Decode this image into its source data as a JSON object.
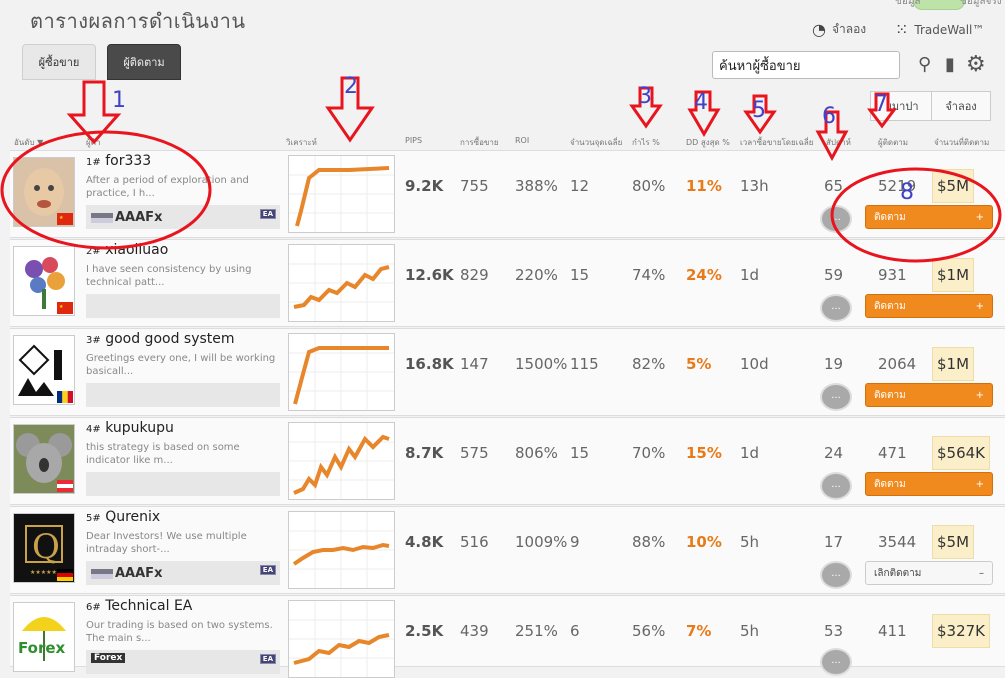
{
  "page_title": "ตารางผลการดำเนินงาน",
  "top": {
    "toggle_left": "ข้อมูล",
    "toggle_right": "ข้อมูลจริง",
    "simulate_label": "จำลอง",
    "tradewall_label": "TradeWall™"
  },
  "tabs": [
    "ผู้ซื้อขาย",
    "ผู้ติดตาม"
  ],
  "search": {
    "placeholder": "ค้นหาผู้ซื้อขาย",
    "value": "ค้นหาผู้ซื้อขาย"
  },
  "segment": {
    "real_partial": "ยมาปา",
    "simulate": "จำลอง"
  },
  "columns": {
    "rank": "อันดับ ▼",
    "name": "ผู้ค้า",
    "chart": "วิเคราะห์",
    "pips": "PIPS",
    "trades": "การซื้อขาย",
    "roi": "ROI",
    "avg_pips": "จำนวนจุดเฉลี่ย",
    "win": "กำไร %",
    "dd": "DD สูงสุด %",
    "time": "เวลาซื้อขายโดยเฉลี่ย",
    "weeks": "สัปดาห์",
    "followers": "ผู้ติดตาม",
    "amount": "จำนวนที่ติดตาม"
  },
  "rows": [
    {
      "rank": "1#",
      "name": "for333",
      "desc": "After a period of exploration and practice, I h...",
      "broker": "AAAFx",
      "ea": "EA",
      "pips": "9.2K",
      "trades": "755",
      "roi": "388%",
      "avg": "12",
      "win": "80%",
      "dd": "11%",
      "time": "13h",
      "weeks": "65",
      "followers": "5219",
      "amount": "$5M",
      "action": "ติดตาม",
      "following": false
    },
    {
      "rank": "2#",
      "name": "xiaoliuao",
      "desc": "I have seen consistency by using technical patt...",
      "broker": "",
      "ea": "",
      "pips": "12.6K",
      "trades": "829",
      "roi": "220%",
      "avg": "15",
      "win": "74%",
      "dd": "24%",
      "time": "1d",
      "weeks": "59",
      "followers": "931",
      "amount": "$1M",
      "action": "ติดตาม",
      "following": false
    },
    {
      "rank": "3#",
      "name": "good good system",
      "desc": "Greetings every one, I will be working basicall...",
      "broker": "",
      "ea": "",
      "pips": "16.8K",
      "trades": "147",
      "roi": "1500%",
      "avg": "115",
      "win": "82%",
      "dd": "5%",
      "time": "10d",
      "weeks": "19",
      "followers": "2064",
      "amount": "$1M",
      "action": "ติดตาม",
      "following": false
    },
    {
      "rank": "4#",
      "name": "kupukupu",
      "desc": "this strategy is based on some indicator like m...",
      "broker": "",
      "ea": "",
      "pips": "8.7K",
      "trades": "575",
      "roi": "806%",
      "avg": "15",
      "win": "70%",
      "dd": "15%",
      "time": "1d",
      "weeks": "24",
      "followers": "471",
      "amount": "$564K",
      "action": "ติดตาม",
      "following": false
    },
    {
      "rank": "5#",
      "name": "Qurenix",
      "desc": "Dear Investors! We use multiple intraday short-...",
      "broker": "AAAFx",
      "ea": "EA",
      "pips": "4.8K",
      "trades": "516",
      "roi": "1009%",
      "avg": "9",
      "win": "88%",
      "dd": "10%",
      "time": "5h",
      "weeks": "17",
      "followers": "3544",
      "amount": "$5M",
      "action": "เลิกติดตาม",
      "following": true
    },
    {
      "rank": "6#",
      "name": "Technical EA",
      "desc": "Our trading is based on two systems. The main s...",
      "broker": "Forex",
      "ea": "EA",
      "pips": "2.5K",
      "trades": "439",
      "roi": "251%",
      "avg": "6",
      "win": "56%",
      "dd": "7%",
      "time": "5h",
      "weeks": "53",
      "followers": "411",
      "amount": "$327K",
      "action": "ติดตาม",
      "following": false
    }
  ],
  "chat_label": "...",
  "annotations": [
    "1",
    "2",
    "3",
    "4",
    "5",
    "6",
    "7",
    "8"
  ],
  "colors": {
    "accent_orange": "#f08a1e",
    "dd_orange": "#e77b1a",
    "annotation_red": "#e8141e",
    "annotation_blue": "#4242c9"
  }
}
